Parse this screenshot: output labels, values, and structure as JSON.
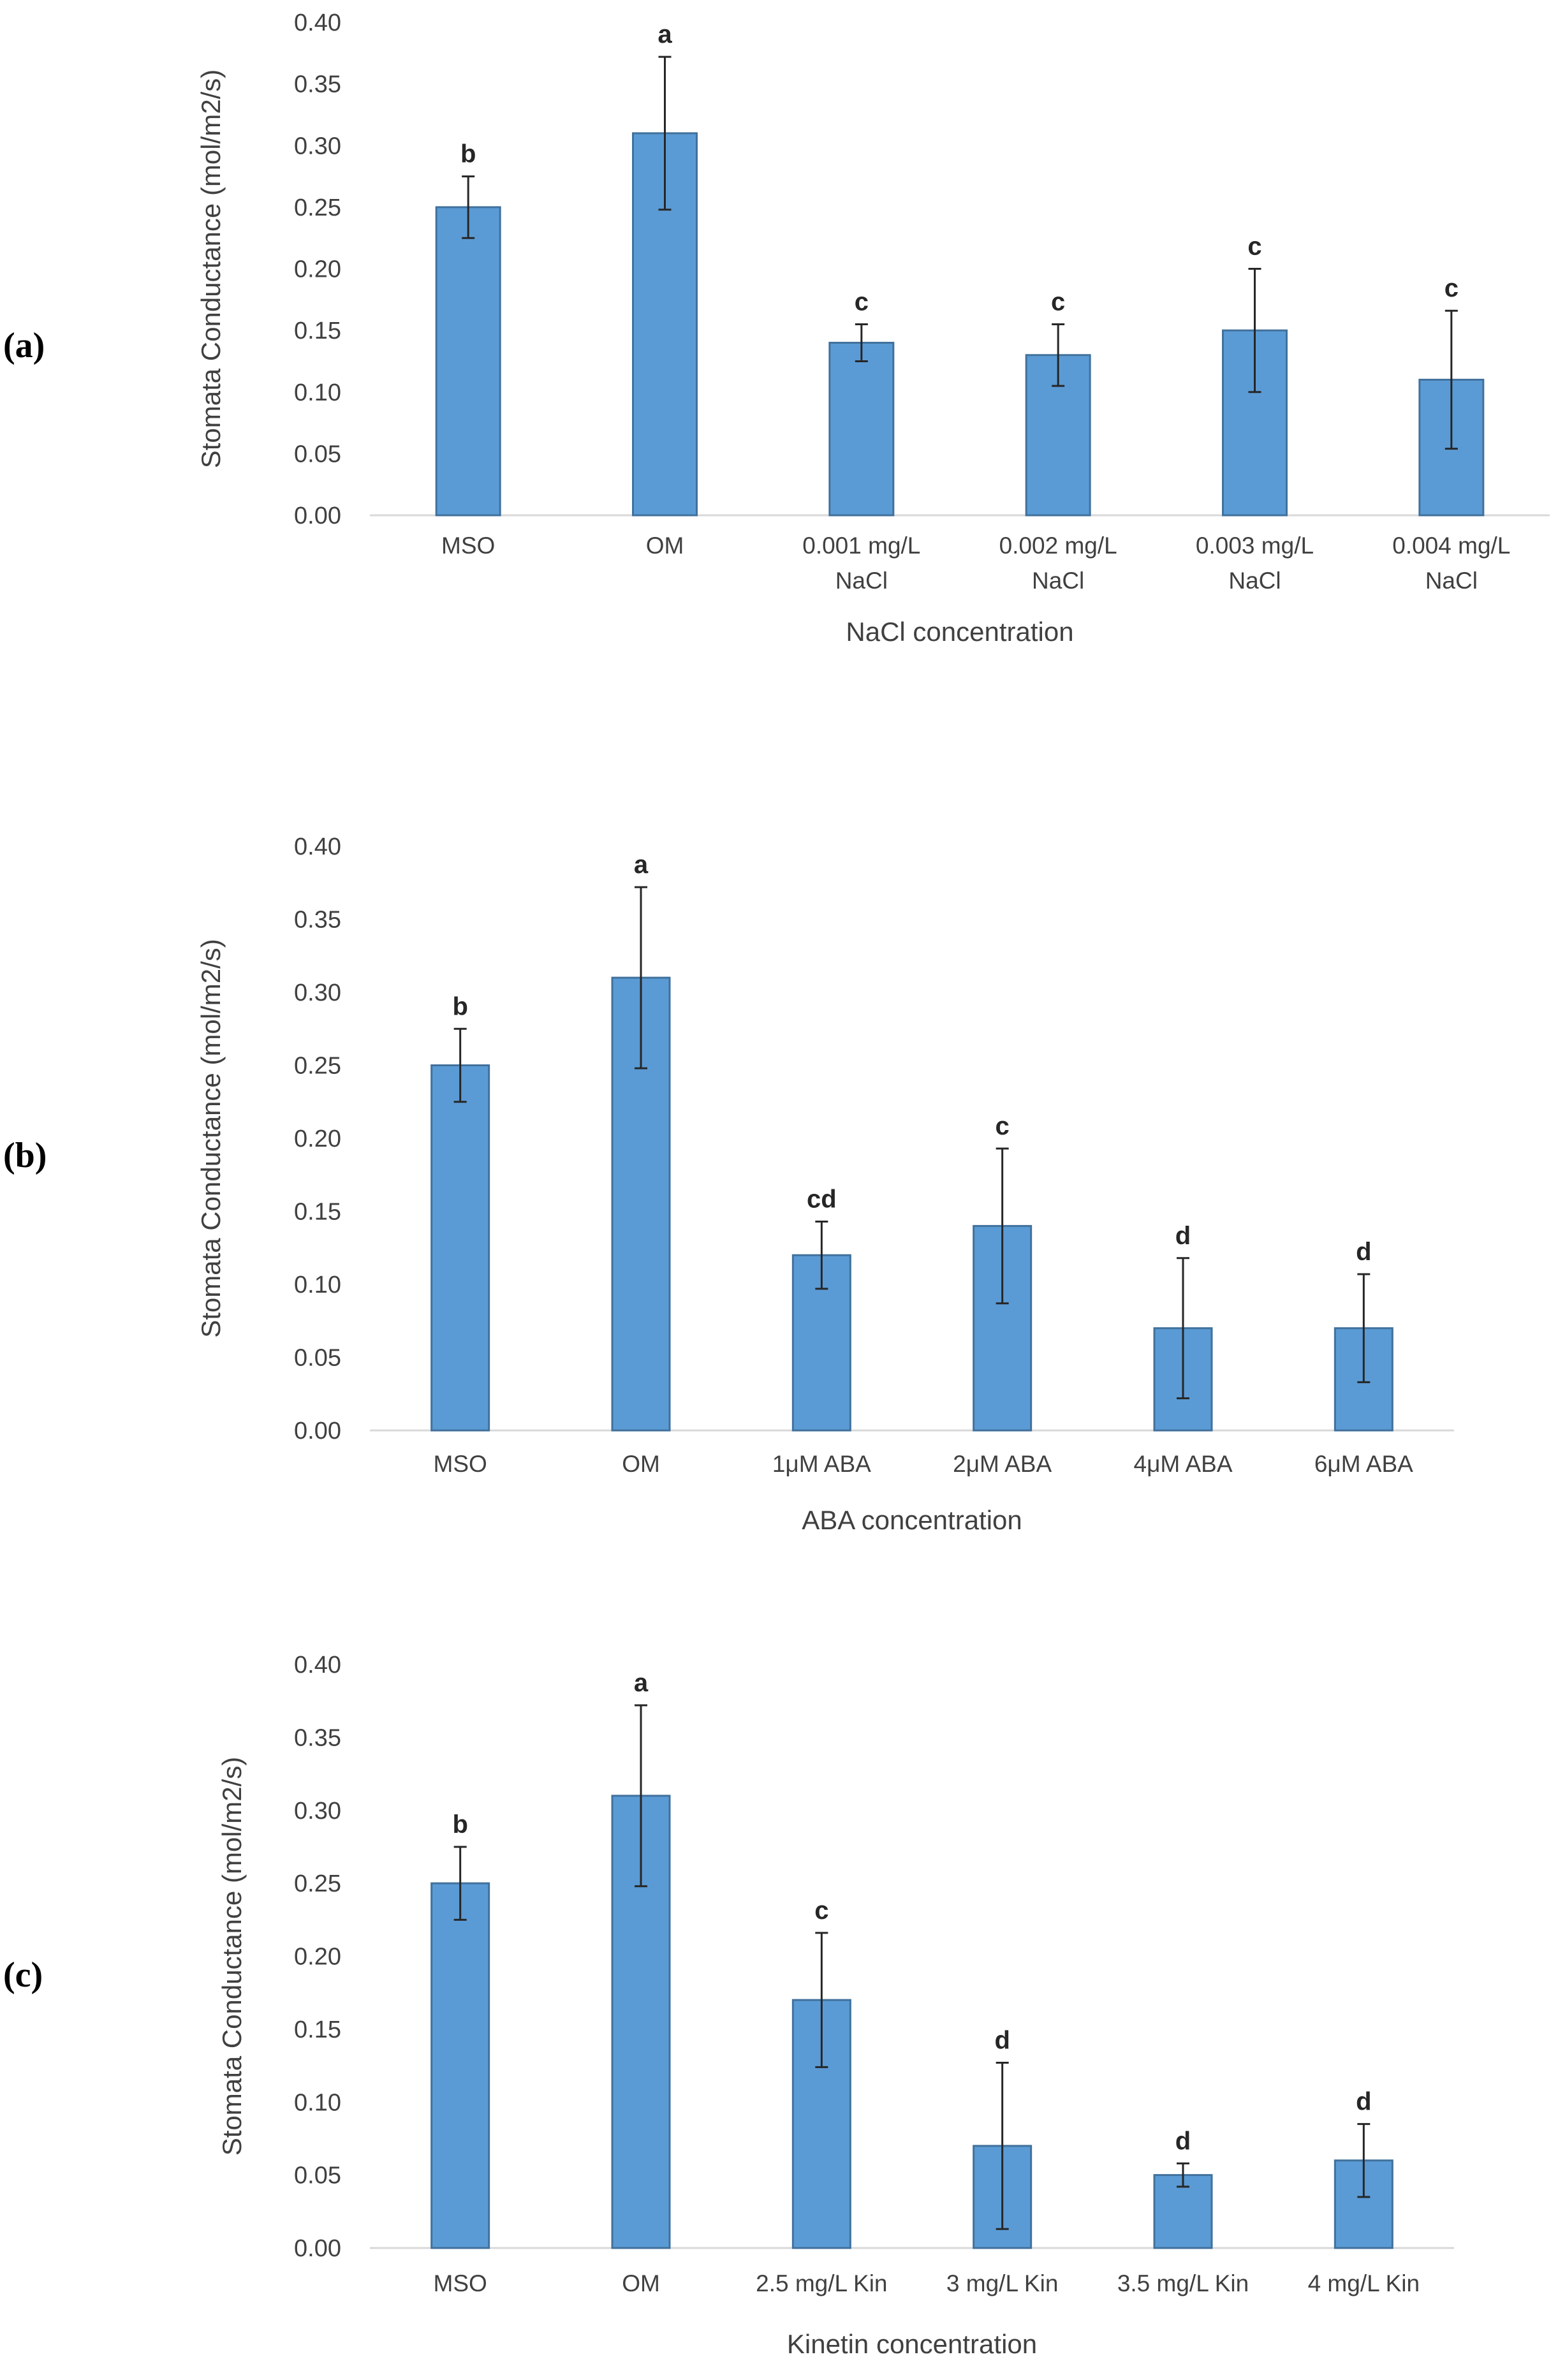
{
  "colors": {
    "bar": "#5b9bd5",
    "bar_edge": "#41719c",
    "error": "#262626",
    "axis": "#d9d9d9",
    "text": "#404040"
  },
  "chart_data": [
    {
      "type": "bar",
      "panel": "(a)",
      "xlabel": "NaCl concentration",
      "ylabel": "Stomata Conductance (mol/m2/s)",
      "ylim": [
        0,
        0.4
      ],
      "yticks": [
        "0.00",
        "0.05",
        "0.10",
        "0.15",
        "0.20",
        "0.25",
        "0.30",
        "0.35",
        "0.40"
      ],
      "categories": [
        [
          "MSO"
        ],
        [
          "OM"
        ],
        [
          "0.001 mg/L",
          "NaCl"
        ],
        [
          "0.002 mg/L",
          "NaCl"
        ],
        [
          "0.003 mg/L",
          "NaCl"
        ],
        [
          "0.004 mg/L",
          "NaCl"
        ]
      ],
      "values": [
        0.25,
        0.31,
        0.14,
        0.13,
        0.15,
        0.11
      ],
      "errors": [
        0.025,
        0.062,
        0.015,
        0.025,
        0.05,
        0.056
      ],
      "letters": [
        "b",
        "a",
        "c",
        "c",
        "c",
        "c"
      ]
    },
    {
      "type": "bar",
      "panel": "(b)",
      "xlabel": "ABA concentration",
      "ylabel": "Stomata Conductance (mol/m2/s)",
      "ylim": [
        0,
        0.4
      ],
      "yticks": [
        "0.00",
        "0.05",
        "0.10",
        "0.15",
        "0.20",
        "0.25",
        "0.30",
        "0.35",
        "0.40"
      ],
      "categories": [
        [
          "MSO"
        ],
        [
          "OM"
        ],
        [
          "1μM ABA"
        ],
        [
          "2μM ABA"
        ],
        [
          "4μM ABA"
        ],
        [
          "6μM ABA"
        ]
      ],
      "values": [
        0.25,
        0.31,
        0.12,
        0.14,
        0.07,
        0.07
      ],
      "errors": [
        0.025,
        0.062,
        0.023,
        0.053,
        0.048,
        0.037
      ],
      "letters": [
        "b",
        "a",
        "cd",
        "c",
        "d",
        "d"
      ]
    },
    {
      "type": "bar",
      "panel": "(c)",
      "xlabel": "Kinetin concentration",
      "ylabel": "Stomata Conductance (mol/m2/s)",
      "ylim": [
        0,
        0.4
      ],
      "yticks": [
        "0.00",
        "0.05",
        "0.10",
        "0.15",
        "0.20",
        "0.25",
        "0.30",
        "0.35",
        "0.40"
      ],
      "categories": [
        [
          "MSO"
        ],
        [
          "OM"
        ],
        [
          "2.5 mg/L Kin"
        ],
        [
          "3 mg/L Kin"
        ],
        [
          "3.5 mg/L Kin"
        ],
        [
          "4 mg/L Kin"
        ]
      ],
      "values": [
        0.25,
        0.31,
        0.17,
        0.07,
        0.05,
        0.06
      ],
      "errors": [
        0.025,
        0.062,
        0.046,
        0.057,
        0.008,
        0.025
      ],
      "letters": [
        "b",
        "a",
        "c",
        "d",
        "d",
        "d"
      ]
    }
  ]
}
